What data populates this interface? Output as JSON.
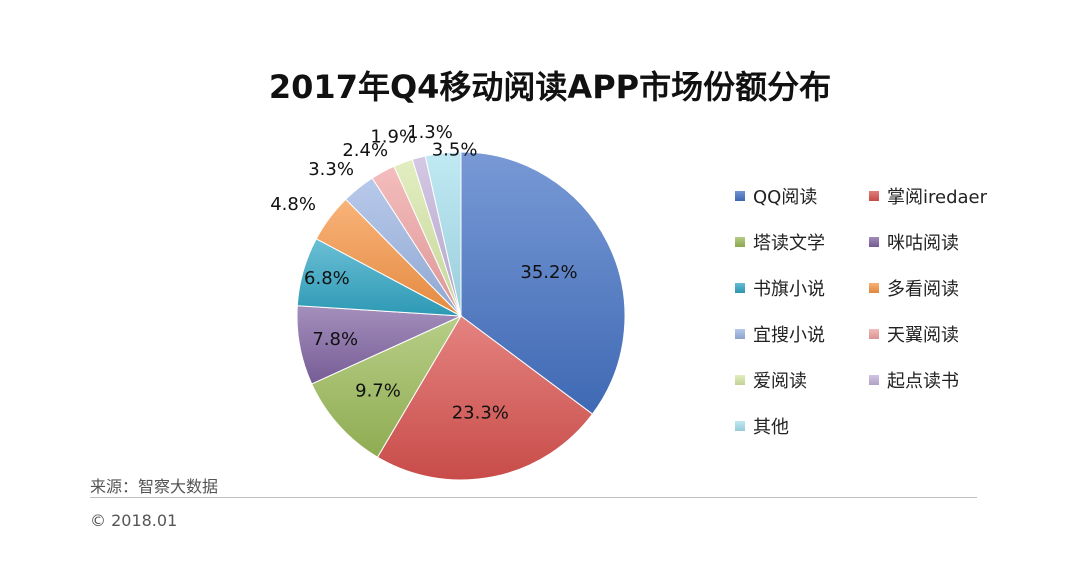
{
  "chart_data": {
    "type": "pie",
    "title": "2017年Q4移动阅读APP市场份额分布",
    "legend_position": "right",
    "slices": [
      {
        "name": "QQ阅读",
        "value": 35.2,
        "label": "35.2%",
        "color": "#4472C4"
      },
      {
        "name": "掌阅iredaer",
        "value": 23.3,
        "label": "23.3%",
        "color": "#D9534F"
      },
      {
        "name": "塔读文学",
        "value": 9.7,
        "label": "9.7%",
        "color": "#9BBB59"
      },
      {
        "name": "咪咕阅读",
        "value": 7.8,
        "label": "7.8%",
        "color": "#8064A2"
      },
      {
        "name": "书旗小说",
        "value": 6.8,
        "label": "6.8%",
        "color": "#31A6C4"
      },
      {
        "name": "多看阅读",
        "value": 4.8,
        "label": "4.8%",
        "color": "#F79646"
      },
      {
        "name": "宜搜小说",
        "value": 3.3,
        "label": "3.3%",
        "color": "#9DB5E3"
      },
      {
        "name": "天翼阅读",
        "value": 2.4,
        "label": "2.4%",
        "color": "#F0A3A3"
      },
      {
        "name": "爱阅读",
        "value": 1.9,
        "label": "1.9%",
        "color": "#D7E8A8"
      },
      {
        "name": "起点读书",
        "value": 1.3,
        "label": "1.3%",
        "color": "#C3B3DA"
      },
      {
        "name": "其他",
        "value": 3.5,
        "label": "3.5%",
        "color": "#A8E0EE"
      }
    ]
  },
  "footer": {
    "source": "来源：智察大数据",
    "copyright": "© 2018.01"
  }
}
